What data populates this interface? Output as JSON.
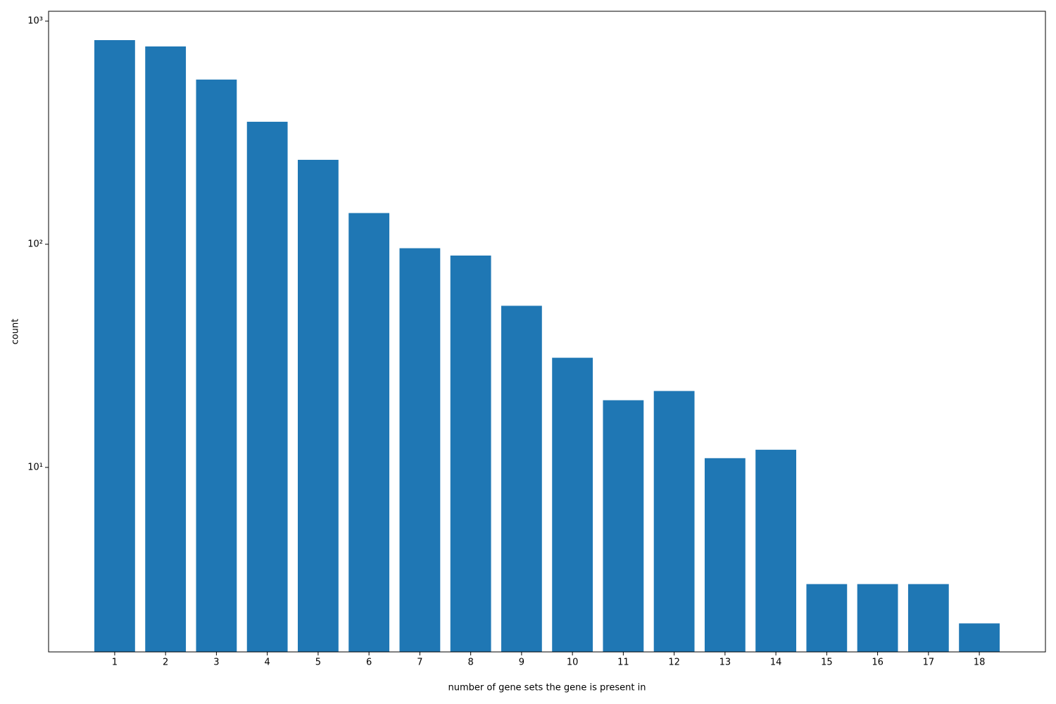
{
  "chart_data": {
    "type": "bar",
    "xlabel": "number of gene sets the gene is present in",
    "ylabel": "count",
    "categories": [
      "1",
      "2",
      "3",
      "4",
      "5",
      "6",
      "7",
      "8",
      "9",
      "10",
      "11",
      "12",
      "13",
      "14",
      "15",
      "16",
      "17",
      "18"
    ],
    "values": [
      822,
      770,
      547,
      354,
      239,
      138,
      96,
      89,
      53,
      31,
      20,
      22,
      11,
      12,
      3,
      3,
      3,
      2
    ],
    "color": "#1f77b4",
    "yscale": "log",
    "ylim": [
      1.49,
      1107
    ],
    "yticks": [
      {
        "value": 10,
        "label": "10¹"
      },
      {
        "value": 100,
        "label": "10²"
      },
      {
        "value": 1000,
        "label": "10³"
      }
    ],
    "grid": false
  }
}
